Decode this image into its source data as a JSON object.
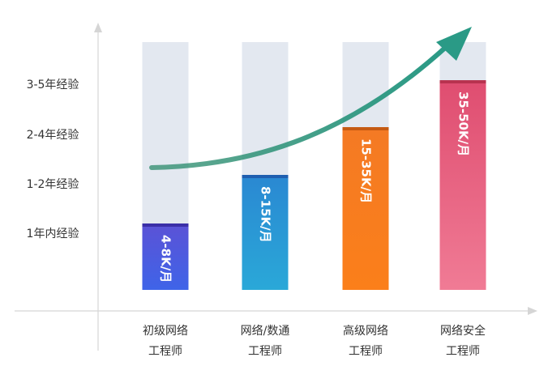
{
  "chart_data": {
    "type": "bar",
    "title": "",
    "xlabel": "",
    "ylabel": "",
    "categories": [
      [
        "初级网络",
        "工程师"
      ],
      [
        "网络/数通",
        "工程师"
      ],
      [
        "高级网络",
        "工程师"
      ],
      [
        "网络安全",
        "工程师"
      ]
    ],
    "y_ticks": [
      "1年内经验",
      "1-2年经验",
      "2-4年经验",
      "3-5年经验"
    ],
    "values": [
      1,
      2,
      3,
      4
    ],
    "value_labels": [
      "4-8K/月",
      "8-15K/月",
      "15-35K/月",
      "35-50K/月"
    ],
    "ylim": [
      0,
      5
    ],
    "grid": false,
    "legend": "none",
    "colors": {
      "track": "#e3e8f0",
      "bars": [
        {
          "top": "#5b52d6",
          "bottom": "#3f64e8",
          "cap": "#3a2fa8"
        },
        {
          "top": "#2a88d2",
          "bottom": "#2aa8d8",
          "cap": "#1f5fb0"
        },
        {
          "top": "#f47a24",
          "bottom": "#fb7f1a",
          "cap": "#c55a12"
        },
        {
          "top": "#df4d70",
          "bottom": "#f07b95",
          "cap": "#b8334f"
        }
      ],
      "trend": "#2b9c83",
      "axis": "#d5d5d5"
    }
  }
}
